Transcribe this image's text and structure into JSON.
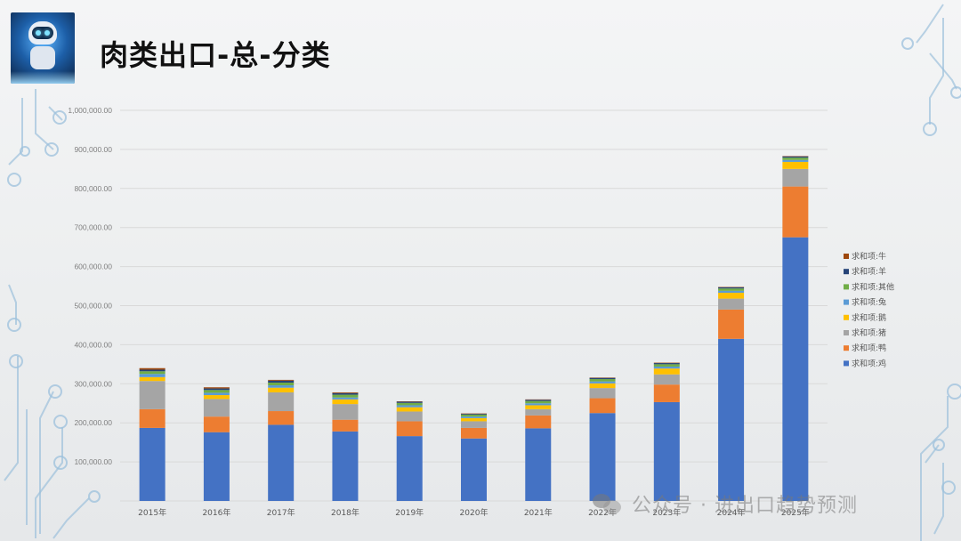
{
  "slide": {
    "title": "肉类出口-总-分类",
    "watermark": "公众号 · 进出口趋势预测",
    "logo_icon": "robot-avatar-icon",
    "watermark_icon": "wechat-icon",
    "decor_color": "#9cc0dc"
  },
  "chart_data": {
    "type": "bar",
    "stacked": true,
    "title": "",
    "xlabel": "",
    "ylabel": "",
    "ylim": [
      0,
      1000000
    ],
    "yticks": [
      0,
      100000,
      200000,
      300000,
      400000,
      500000,
      600000,
      700000,
      800000,
      900000,
      1000000
    ],
    "ytick_labels": [
      "",
      "100,000.00",
      "200,000.00",
      "300,000.00",
      "400,000.00",
      "500,000.00",
      "600,000.00",
      "700,000.00",
      "800,000.00",
      "900,000.00",
      "1,000,000.00"
    ],
    "grid": true,
    "legend_position": "right",
    "categories": [
      "2015年",
      "2016年",
      "2017年",
      "2018年",
      "2019年",
      "2020年",
      "2021年",
      "2022年",
      "2023年",
      "2024年",
      "2025年"
    ],
    "series": [
      {
        "name": "求和项:鸡",
        "color": "#4472c4",
        "values": [
          187000,
          176000,
          195000,
          178000,
          166000,
          160000,
          186000,
          225000,
          253000,
          415000,
          675000
        ]
      },
      {
        "name": "求和项:鸭",
        "color": "#ed7d31",
        "values": [
          48000,
          40000,
          35000,
          30000,
          38000,
          27000,
          33000,
          38000,
          45000,
          75000,
          130000
        ]
      },
      {
        "name": "求和项:猪",
        "color": "#a5a5a5",
        "values": [
          72000,
          45000,
          48000,
          40000,
          25000,
          17000,
          16000,
          26000,
          26000,
          28000,
          45000
        ]
      },
      {
        "name": "求和项:鹅",
        "color": "#ffc000",
        "values": [
          10000,
          10000,
          12000,
          12000,
          11000,
          8000,
          10000,
          12000,
          15000,
          15000,
          18000
        ]
      },
      {
        "name": "求和项:兔",
        "color": "#5b9bd5",
        "values": [
          8000,
          6000,
          6000,
          5000,
          5000,
          4000,
          5000,
          5000,
          5000,
          5000,
          5000
        ]
      },
      {
        "name": "求和项:其他",
        "color": "#70ad47",
        "values": [
          7000,
          7000,
          7000,
          7000,
          6000,
          5000,
          6000,
          6000,
          6000,
          6000,
          6000
        ]
      },
      {
        "name": "求和项:羊",
        "color": "#264478",
        "values": [
          4000,
          4000,
          5000,
          4000,
          3000,
          2000,
          3000,
          3000,
          3000,
          3000,
          3000
        ]
      },
      {
        "name": "求和项:牛",
        "color": "#9e480e",
        "values": [
          4000,
          3000,
          2000,
          2000,
          1000,
          1000,
          1000,
          1000,
          1000,
          1000,
          1000
        ]
      }
    ]
  }
}
